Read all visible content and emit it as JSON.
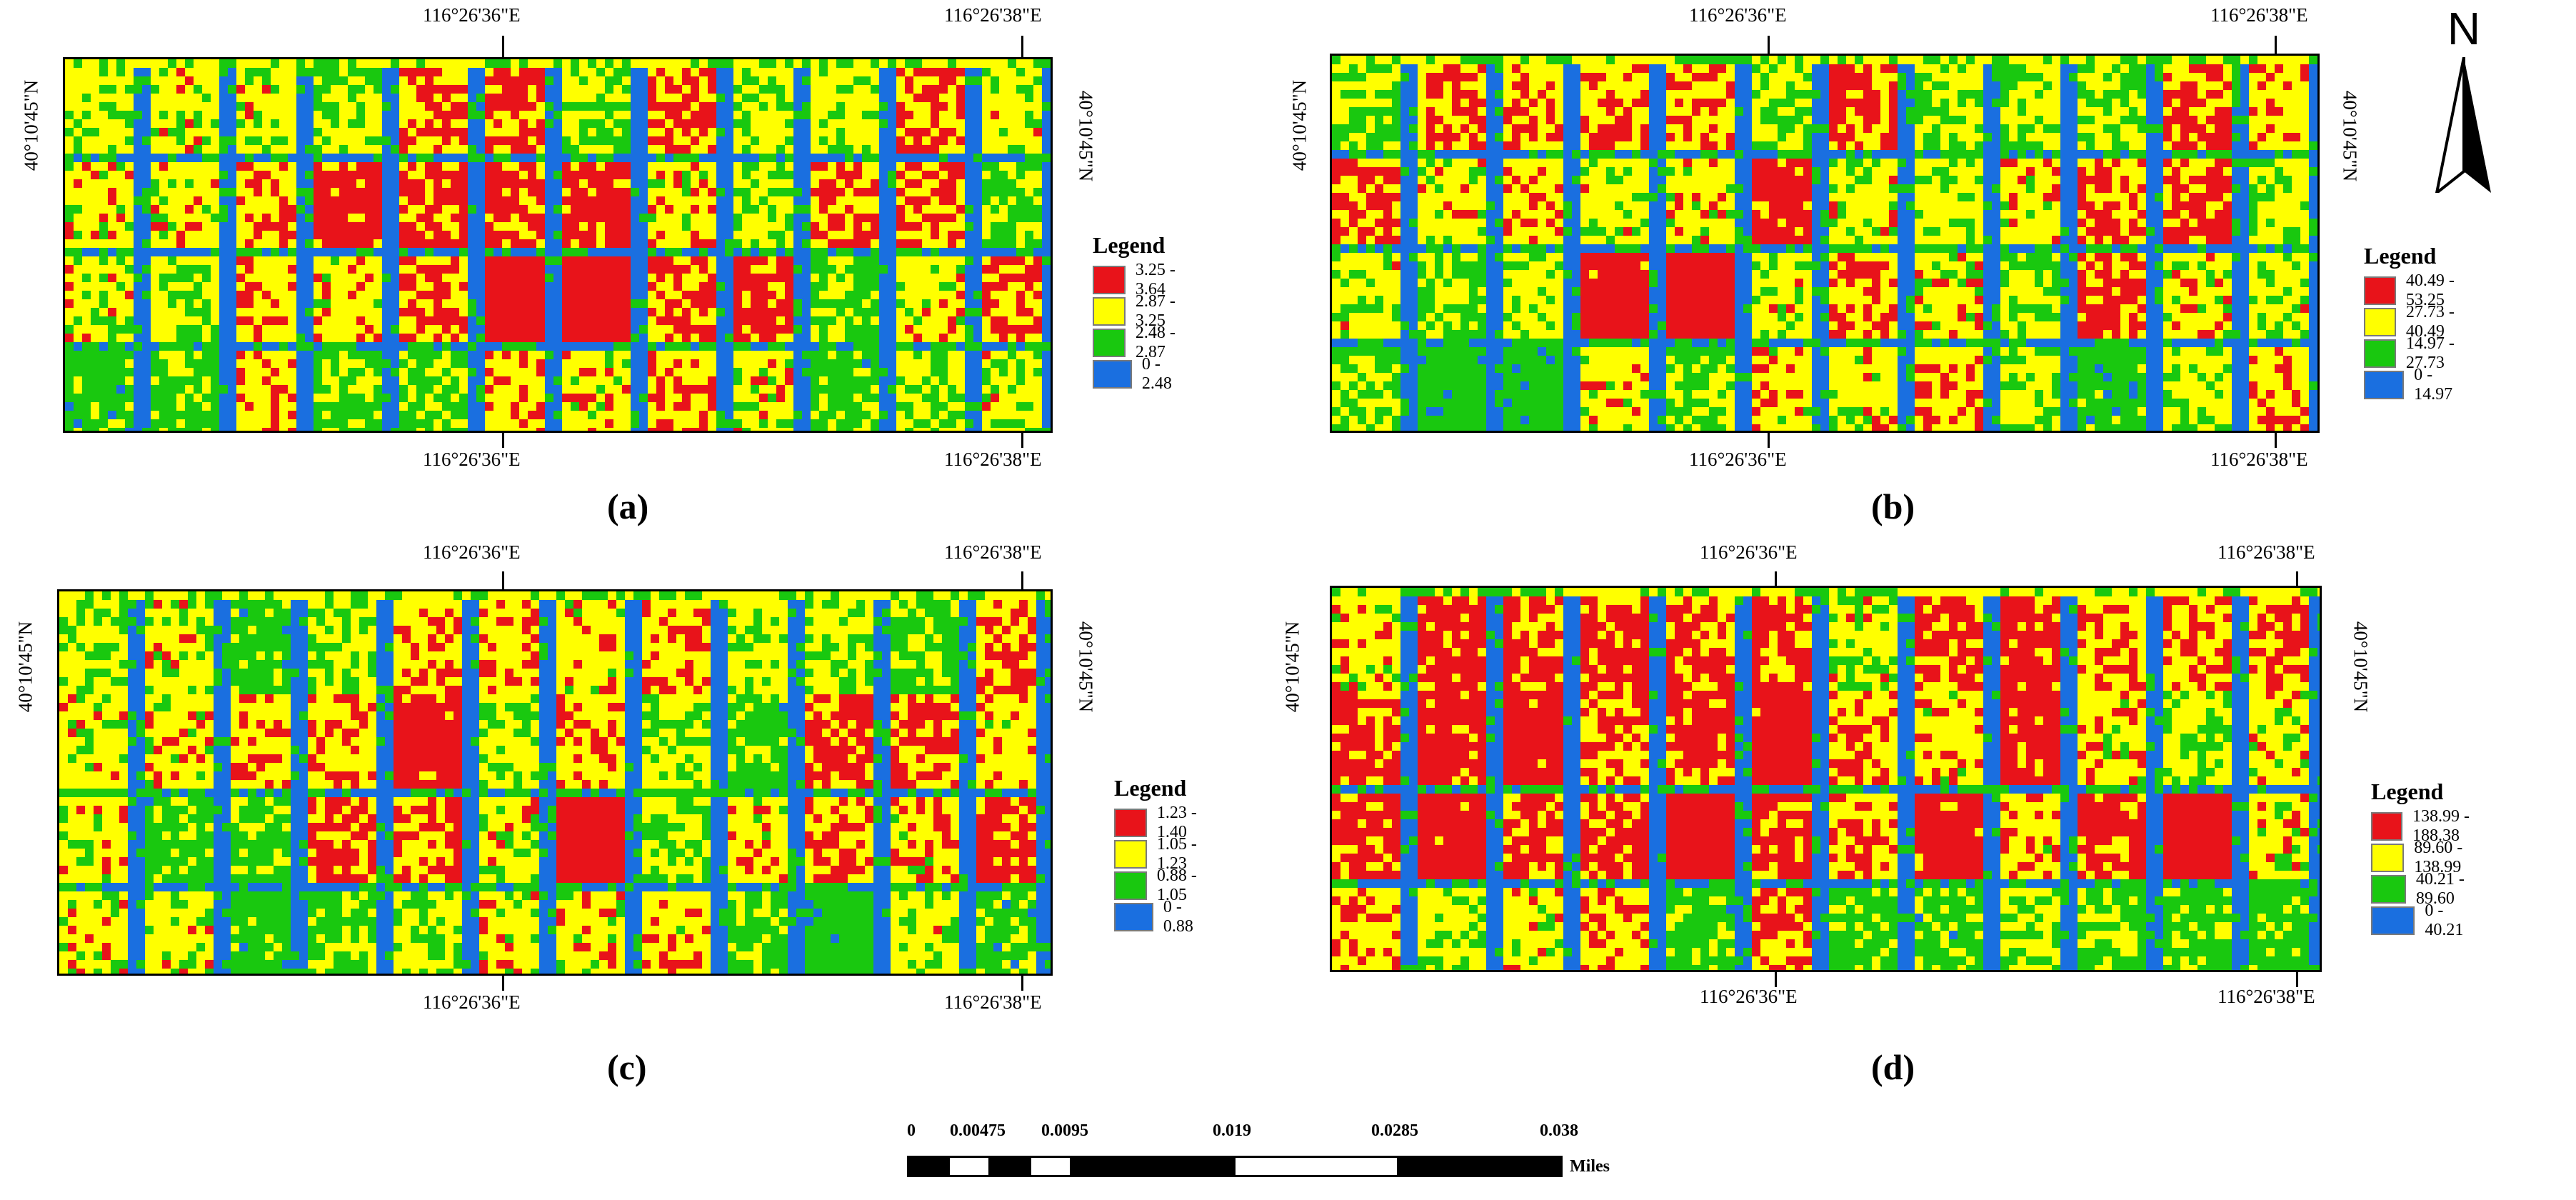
{
  "colors": {
    "high": "#e8131a",
    "midhigh": "#ffff00",
    "midlow": "#19c80f",
    "low": "#1a6fe0"
  },
  "panels": [
    {
      "id": "a",
      "caption": "(a)",
      "top_lon_labels": [
        "116°26'36\"E",
        "116°26'38\"E"
      ],
      "bottom_lon_labels": [
        "116°26'36\"E",
        "116°26'38\"E"
      ],
      "left_lat_label": "40°10'45\"N",
      "right_lat_label": "40°10'45\"N",
      "legend": {
        "title": "Legend",
        "classes": [
          "3.25 - 3.64",
          "2.87 - 3.25",
          "2.48 - 2.87",
          "0 - 2.48"
        ]
      }
    },
    {
      "id": "b",
      "caption": "(b)",
      "top_lon_labels": [
        "116°26'36\"E",
        "116°26'38\"E"
      ],
      "bottom_lon_labels": [
        "116°26'36\"E",
        "116°26'38\"E"
      ],
      "left_lat_label": "40°10'45\"N",
      "right_lat_label": "40°10'45\"N",
      "legend": {
        "title": "Legend",
        "classes": [
          "40.49 - 53.25",
          "27.73 - 40.49",
          "14.97 - 27.73",
          "0 - 14.97"
        ]
      }
    },
    {
      "id": "c",
      "caption": "(c)",
      "top_lon_labels": [
        "116°26'36\"E",
        "116°26'38\"E"
      ],
      "bottom_lon_labels": [
        "116°26'36\"E",
        "116°26'38\"E"
      ],
      "left_lat_label": "40°10'45\"N",
      "right_lat_label": "40°10'45\"N",
      "legend": {
        "title": "Legend",
        "classes": [
          "1.23 - 1.40",
          "1.05 - 1.23",
          "0.88 - 1.05",
          "0 - 0.88"
        ]
      }
    },
    {
      "id": "d",
      "caption": "(d)",
      "top_lon_labels": [
        "116°26'36\"E",
        "116°26'38\"E"
      ],
      "bottom_lon_labels": [
        "116°26'36\"E",
        "116°26'38\"E"
      ],
      "left_lat_label": "40°10'45\"N",
      "right_lat_label": "40°10'45\"N",
      "legend": {
        "title": "Legend",
        "classes": [
          "138.99 - 188.38",
          "89.60 - 138.99",
          "40.21 - 89.60",
          "0 - 40.21"
        ]
      }
    }
  ],
  "north_arrow": {
    "label": "N",
    "icon": "north-arrow-icon"
  },
  "scale_bar": {
    "ticks": [
      "0",
      "0.00475",
      "0.0095",
      "0.019",
      "0.0285",
      "0.038"
    ],
    "unit": "Miles"
  }
}
